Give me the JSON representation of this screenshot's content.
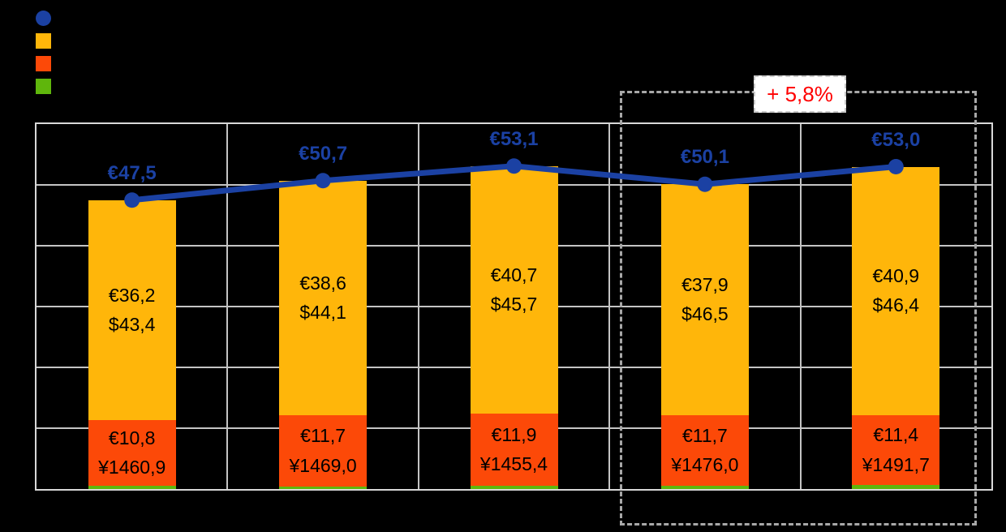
{
  "chart_data": {
    "type": "bar",
    "subtype": "stacked-bars-with-line-overlay",
    "categories": [
      "",
      "",
      "",
      "",
      ""
    ],
    "ylim": [
      0,
      60
    ],
    "grid": {
      "horizontal_every": 10,
      "vertical": "category boundaries",
      "visible": true
    },
    "legend_position": "top-left",
    "series": [
      {
        "name": "total-line",
        "type": "line",
        "color": "#1B41A3",
        "values": [
          47.5,
          50.7,
          53.1,
          50.1,
          53.0
        ],
        "labels": [
          "€47,5",
          "€50,7",
          "€53,1",
          "€50,1",
          "€53,0"
        ]
      },
      {
        "name": "upper-bar-segment",
        "type": "bar",
        "color": "#FFB60A",
        "values": [
          36.2,
          38.6,
          40.7,
          37.9,
          40.9
        ],
        "labels_line1": [
          "€36,2",
          "€38,6",
          "€40,7",
          "€37,9",
          "€40,9"
        ],
        "labels_line2": [
          "$43,4",
          "$44,1",
          "$45,7",
          "$46,5",
          "$46,4"
        ]
      },
      {
        "name": "middle-bar-segment",
        "type": "bar",
        "color": "#FC4908",
        "values": [
          10.8,
          11.7,
          11.9,
          11.7,
          11.4
        ],
        "labels_line1": [
          "€10,8",
          "€11,7",
          "€11,9",
          "€11,7",
          "€11,4"
        ],
        "labels_line2": [
          "¥1460,9",
          "¥1469,0",
          "¥1455,4",
          "¥1476,0",
          "¥1491,7"
        ]
      },
      {
        "name": "bottom-bar-segment",
        "type": "bar",
        "color": "#5FB60C",
        "values": [
          0.5,
          0.4,
          0.5,
          0.5,
          0.7
        ],
        "labels_line1": [
          "",
          "",
          "",
          "",
          ""
        ],
        "labels_line2": [
          "",
          "",
          "",
          "",
          ""
        ]
      }
    ],
    "annotation": {
      "text": "+ 5,8%",
      "text_color": "#FF0000",
      "applies_to": "last two categories",
      "box_style": "grey dashed rectangle around last two bars"
    }
  },
  "legend": {
    "items": [
      {
        "name": "total-line",
        "shape": "circle",
        "color": "#1B41A3",
        "label": ""
      },
      {
        "name": "upper-bar-segment",
        "shape": "square",
        "color": "#FFB60A",
        "label": ""
      },
      {
        "name": "middle-bar-segment",
        "shape": "square",
        "color": "#FC4908",
        "label": ""
      },
      {
        "name": "bottom-bar-segment",
        "shape": "square",
        "color": "#5FB60C",
        "label": ""
      }
    ]
  },
  "colors": {
    "background": "#000000",
    "plot_border": "#D8D8D8",
    "gridline": "#C4C4C4",
    "dashed_box": "#A8A8A8",
    "line_blue": "#1B41A3",
    "bar_orange": "#FFB60A",
    "bar_red": "#FC4908",
    "bar_green": "#5FB60C",
    "annotation_red": "#FF0000",
    "bar_label_text": "#000000"
  }
}
